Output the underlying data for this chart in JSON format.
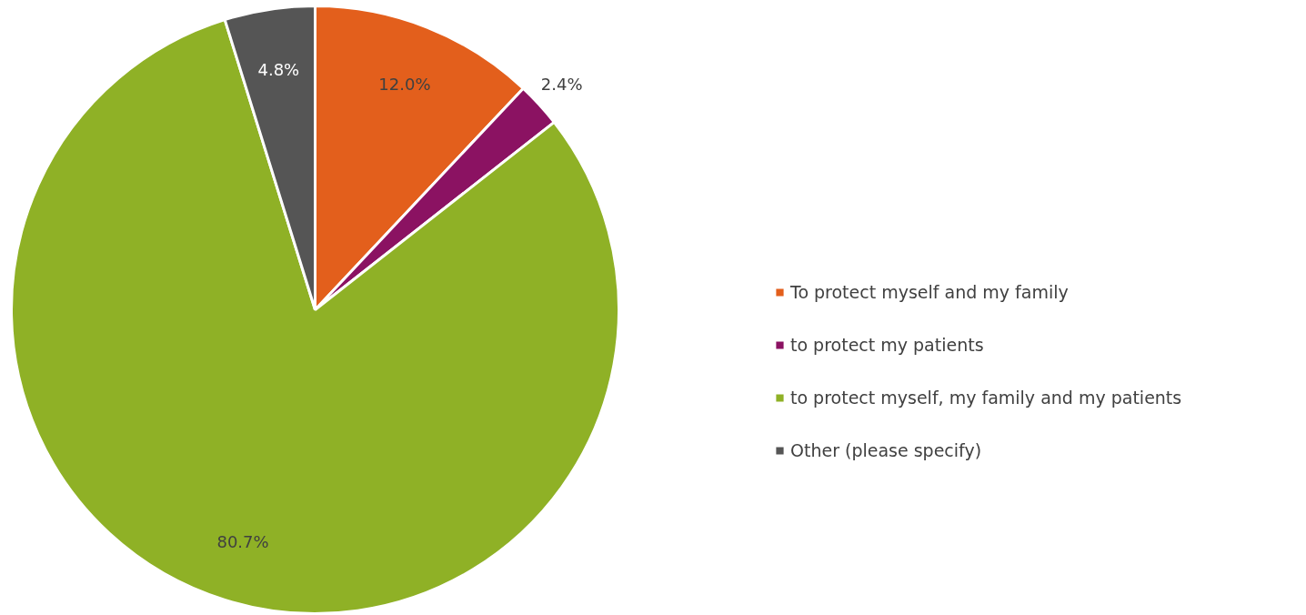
{
  "chart_data": {
    "type": "pie",
    "categories": [
      "To protect myself and my family",
      "to protect my patients",
      "to protect myself, my family and my patients",
      "Other (please specify)"
    ],
    "values": [
      12.0,
      2.4,
      80.7,
      4.8
    ],
    "colors": [
      "#e35f1c",
      "#8b1262",
      "#8fb126",
      "#555555"
    ],
    "value_labels": [
      "12.0%",
      "2.4%",
      "80.7%",
      "4.8%"
    ],
    "legend": "right"
  }
}
